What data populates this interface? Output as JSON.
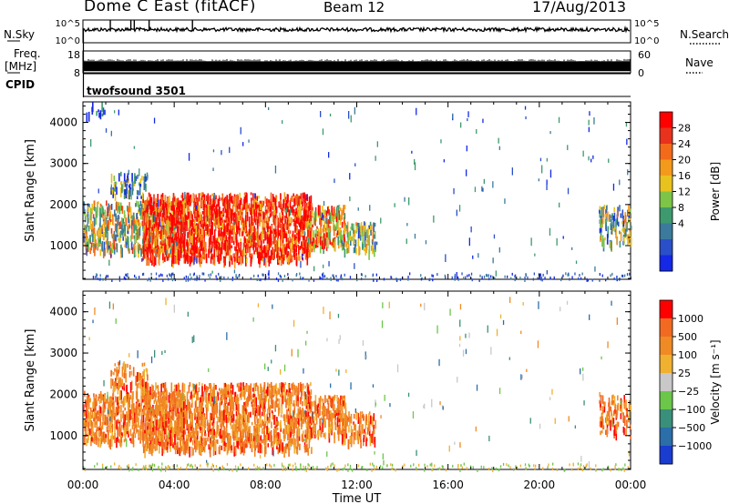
{
  "header": {
    "station": "Dome C East (fitACF)",
    "beam": "Beam 12",
    "date": "17/Aug/2013"
  },
  "left_labels": {
    "nsky": "N.Sky",
    "freq_line1": "Freq.",
    "freq_line2": "[MHz]",
    "cpid": "CPID"
  },
  "right_labels": {
    "nsearch": "N.Search",
    "nave": "Nave"
  },
  "cpid_name": "twofsound 3501",
  "chart_data": [
    {
      "type": "line",
      "panel": "noise",
      "left_axis": {
        "label": "N.Sky",
        "ticks": [
          "10^5",
          "10^0"
        ],
        "scale": "log"
      },
      "right_axis": {
        "label": "N.Search",
        "ticks": [
          "10^5",
          "10^0"
        ],
        "scale": "log"
      },
      "x": {
        "range": [
          "00:00",
          "24:00"
        ]
      },
      "level_log": 2.9,
      "spikes_hours": [
        1.2,
        2.1,
        2.25,
        2.9,
        4.8
      ]
    },
    {
      "type": "line",
      "panel": "frequency",
      "left_axis": {
        "label": "Freq. [MHz]",
        "ticks": [
          18,
          8
        ],
        "range": [
          8,
          18
        ]
      },
      "right_axis": {
        "label": "Nave",
        "ticks": [
          60,
          0
        ],
        "range": [
          0,
          60
        ]
      },
      "x": {
        "range": [
          "00:00",
          "24:00"
        ]
      },
      "band_mhz": [
        10,
        12
      ]
    },
    {
      "type": "heatmap",
      "panel": "power",
      "ylabel": "Slant Range [km]",
      "yticks": [
        1000,
        2000,
        3000,
        4000
      ],
      "ylim": [
        180,
        4500
      ],
      "xlim_hours": [
        0,
        24
      ],
      "colorbar": {
        "label": "Power [dB]",
        "ticks": [
          "28",
          "24",
          "20",
          "16",
          "12",
          "8",
          "4"
        ],
        "range": [
          0,
          30
        ],
        "colors": [
          "#1428e6",
          "#2a4fc8",
          "#3b7a9c",
          "#3e9a6e",
          "#7cc548",
          "#e8c21e",
          "#f39a1c",
          "#f36a1a",
          "#e8321e",
          "#ff0000"
        ]
      },
      "echo_regions": [
        {
          "t0": 0.0,
          "t1": 4.4,
          "r0": 900,
          "r1": 2100,
          "level": 0.5
        },
        {
          "t0": 2.6,
          "t1": 10.0,
          "r0": 700,
          "r1": 2300,
          "level": 0.9
        },
        {
          "t0": 9.8,
          "t1": 11.5,
          "r0": 1000,
          "r1": 2000,
          "level": 0.7
        },
        {
          "t0": 11.4,
          "t1": 12.8,
          "r0": 900,
          "r1": 1600,
          "level": 0.45
        },
        {
          "t0": 1.2,
          "t1": 2.8,
          "r0": 2200,
          "r1": 2800,
          "level": 0.25
        },
        {
          "t0": 22.6,
          "t1": 24.0,
          "r0": 1100,
          "r1": 2000,
          "level": 0.4
        },
        {
          "t0": 0.1,
          "t1": 1.0,
          "r0": 4200,
          "r1": 4500,
          "level": 0.05
        }
      ]
    },
    {
      "type": "heatmap",
      "panel": "velocity",
      "ylabel": "Slant Range [km]",
      "yticks": [
        1000,
        2000,
        3000,
        4000
      ],
      "ylim": [
        180,
        4500
      ],
      "xlabel": "Time UT",
      "xticks": [
        "00:00",
        "04:00",
        "08:00",
        "12:00",
        "16:00",
        "20:00",
        "00:00"
      ],
      "xlim_hours": [
        0,
        24
      ],
      "colorbar": {
        "label": "Velocity [m s⁻¹]",
        "ticks": [
          "1000",
          "500",
          "100",
          "25",
          "−25",
          "−100",
          "−500",
          "−1000"
        ],
        "colors": [
          "#1a3ccf",
          "#2b6ea8",
          "#3a8f7a",
          "#6cc64a",
          "#c8c8c8",
          "#f0b030",
          "#f08a24",
          "#f26a22",
          "#ff0000"
        ]
      },
      "echo_regions": [
        {
          "t0": 0.0,
          "t1": 4.4,
          "r0": 900,
          "r1": 2100,
          "level": 0.6
        },
        {
          "t0": 2.6,
          "t1": 10.0,
          "r0": 700,
          "r1": 2300,
          "level": 0.7
        },
        {
          "t0": 9.8,
          "t1": 11.5,
          "r0": 1000,
          "r1": 2000,
          "level": 0.6
        },
        {
          "t0": 11.4,
          "t1": 12.8,
          "r0": 900,
          "r1": 1600,
          "level": 0.5
        },
        {
          "t0": 1.2,
          "t1": 2.8,
          "r0": 2200,
          "r1": 2800,
          "level": 0.35
        },
        {
          "t0": 22.6,
          "t1": 24.0,
          "r0": 1100,
          "r1": 2000,
          "level": 0.25
        }
      ]
    }
  ]
}
